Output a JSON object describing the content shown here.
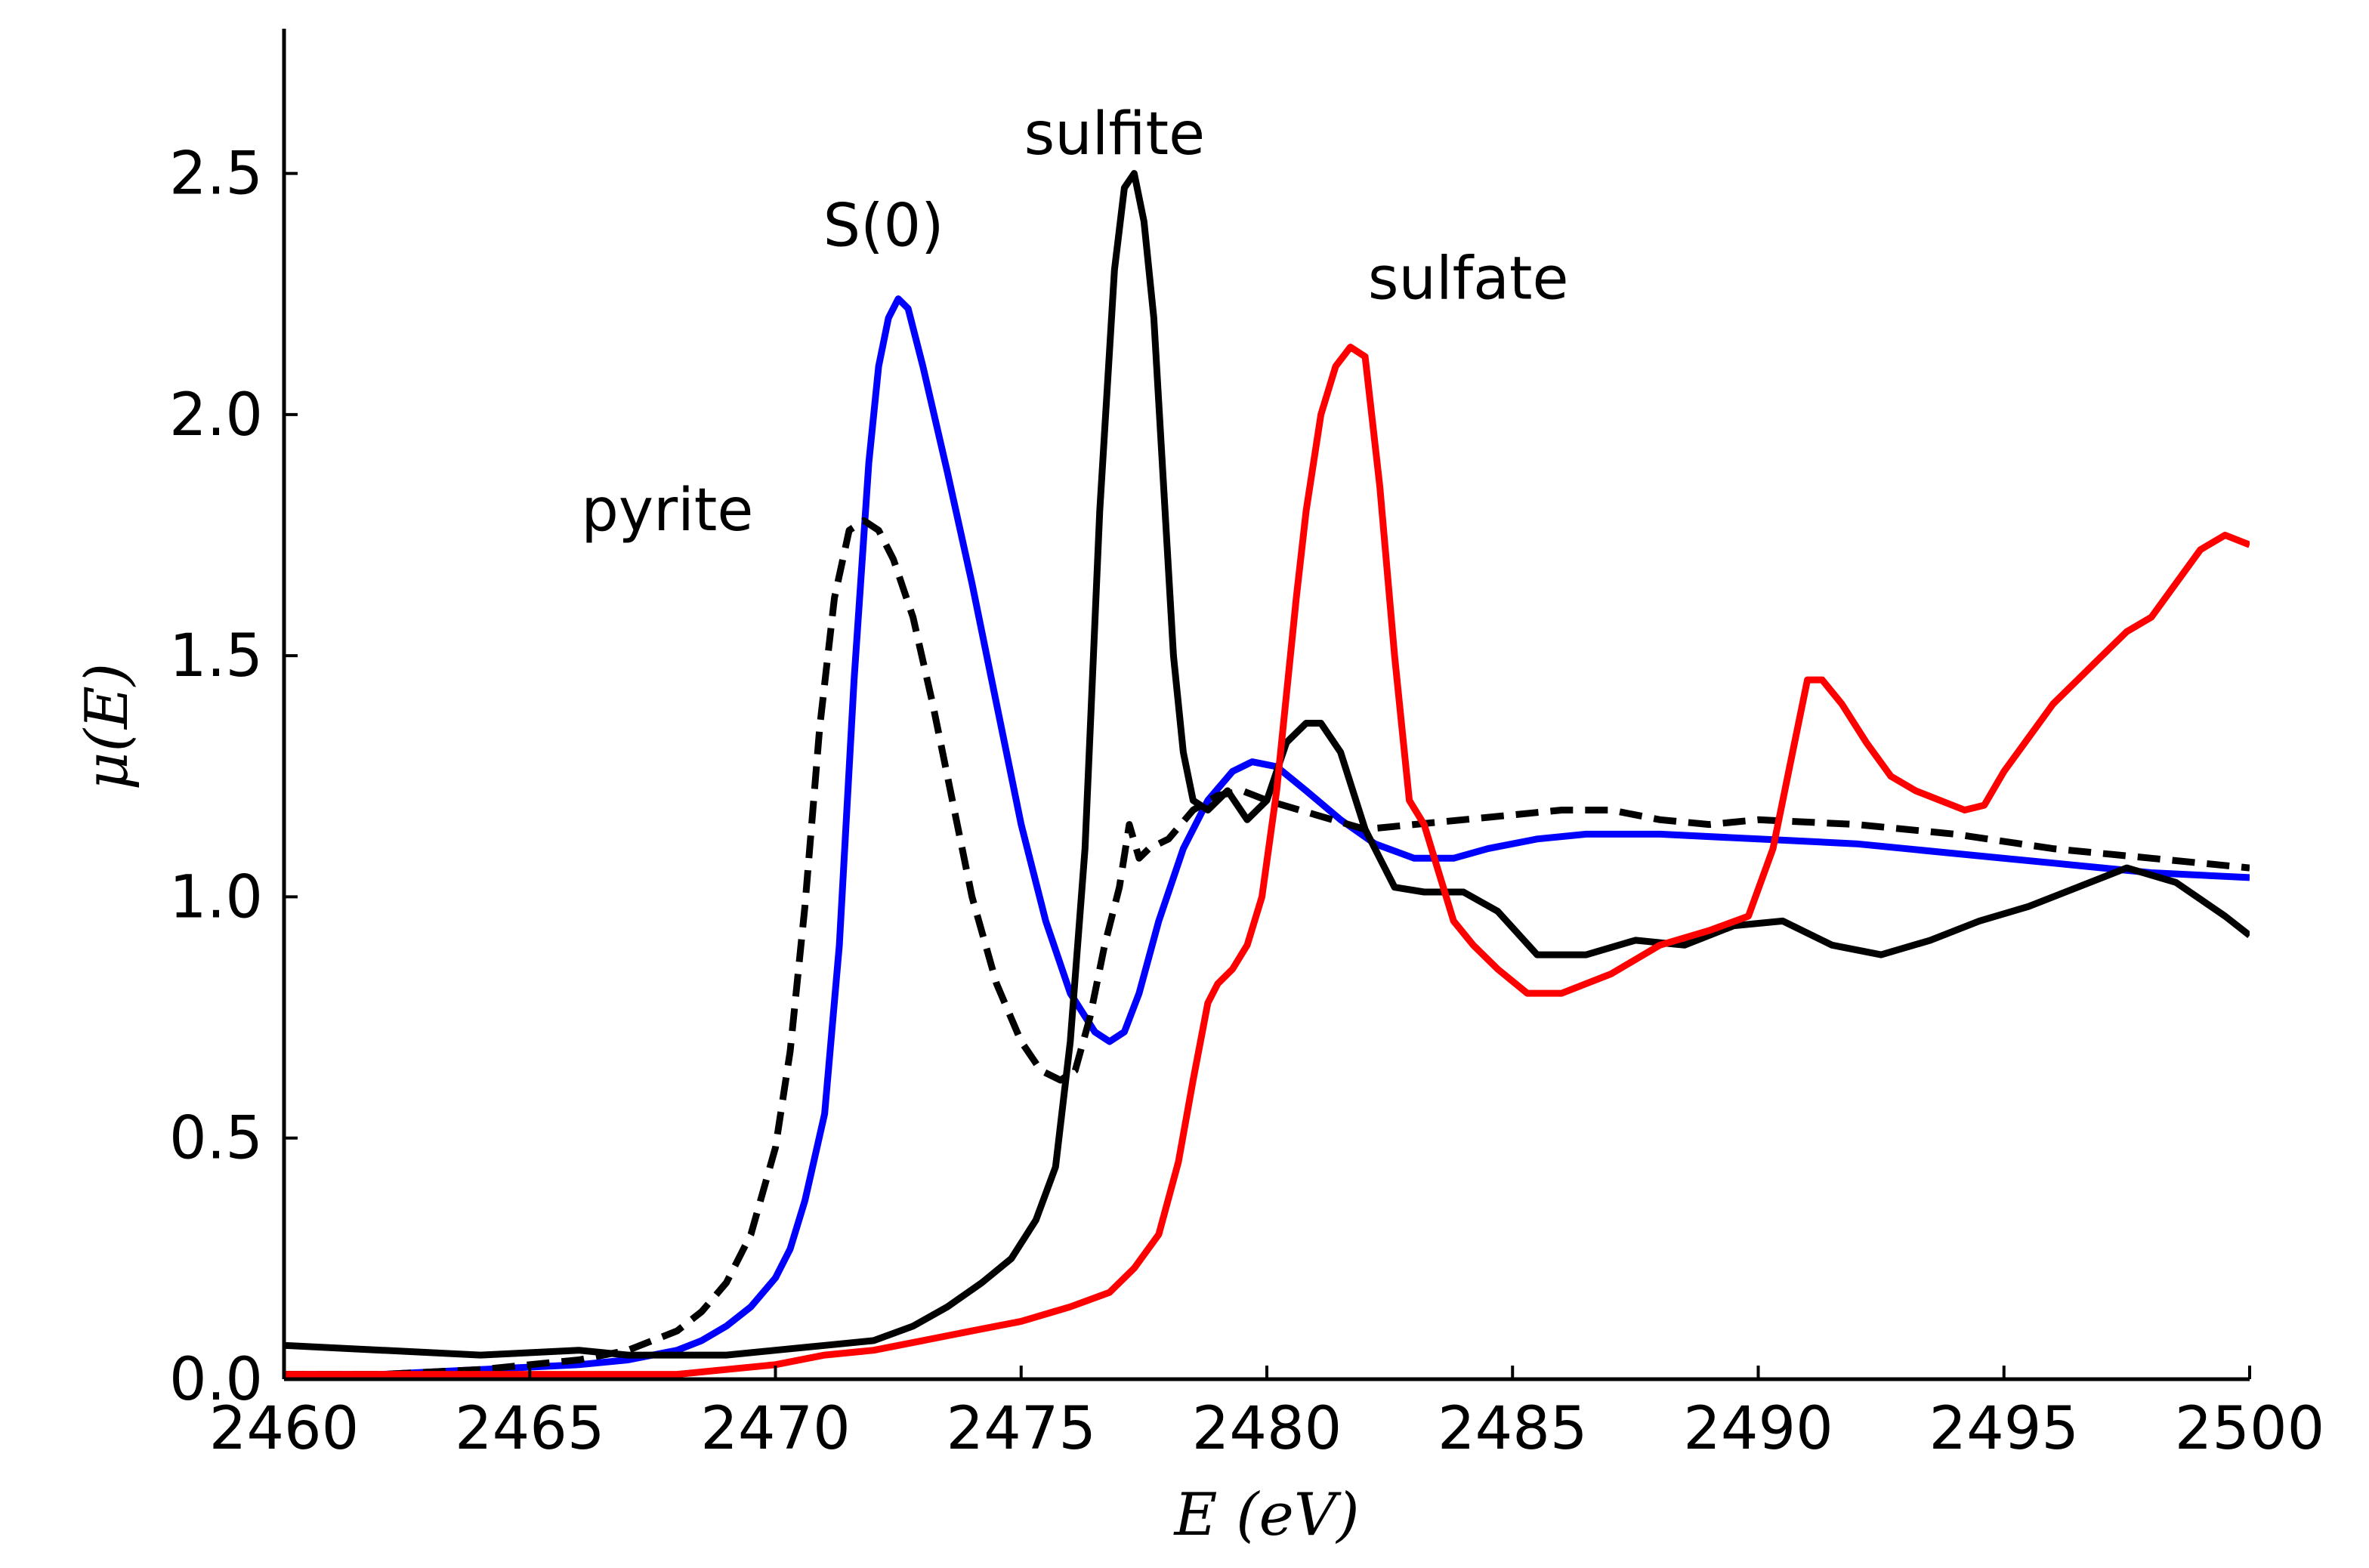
{
  "chart_data": {
    "type": "line",
    "title": "",
    "xlabel": "E (eV)",
    "ylabel": "μ(E)",
    "xlim": [
      2460,
      2500
    ],
    "ylim": [
      0,
      2.8
    ],
    "x_ticks": [
      2460,
      2465,
      2470,
      2475,
      2480,
      2485,
      2490,
      2495,
      2500
    ],
    "x_tick_labels": [
      "2460",
      "2465",
      "2470",
      "2475",
      "2480",
      "2485",
      "2490",
      "2495",
      "2500"
    ],
    "y_ticks": [
      0,
      0.5,
      1.0,
      1.5,
      2.0,
      2.5
    ],
    "y_tick_labels": [
      "0.0",
      "0.5",
      "1.0",
      "1.5",
      "2.0",
      "2.5"
    ],
    "grid": false,
    "legend": "none",
    "annotations": [
      {
        "text": "pyrite",
        "x": 2467.8,
        "y": 1.76
      },
      {
        "text": "S(0)",
        "x": 2472.2,
        "y": 2.35
      },
      {
        "text": "sulfite",
        "x": 2476.9,
        "y": 2.54
      },
      {
        "text": "sulfate",
        "x": 2484.1,
        "y": 2.24
      }
    ],
    "series": [
      {
        "color": "#0000ff",
        "style": "solid",
        "x": [
          2460,
          2462,
          2464,
          2466,
          2467,
          2468,
          2468.5,
          2469,
          2469.5,
          2470,
          2470.3,
          2470.6,
          2471,
          2471.3,
          2471.6,
          2471.9,
          2472.1,
          2472.3,
          2472.5,
          2472.7,
          2473,
          2473.5,
          2474,
          2474.5,
          2475,
          2475.5,
          2476,
          2476.5,
          2476.8,
          2477.1,
          2477.4,
          2477.8,
          2478.3,
          2478.8,
          2479.3,
          2479.7,
          2480.2,
          2480.8,
          2481.5,
          2482.2,
          2483,
          2483.8,
          2484.5,
          2485.5,
          2486.5,
          2488,
          2490,
          2492,
          2494,
          2496,
          2498,
          2500
        ],
        "y": [
          0.01,
          0.01,
          0.02,
          0.03,
          0.04,
          0.06,
          0.08,
          0.11,
          0.15,
          0.21,
          0.27,
          0.37,
          0.55,
          0.9,
          1.45,
          1.9,
          2.1,
          2.2,
          2.24,
          2.22,
          2.1,
          1.88,
          1.65,
          1.4,
          1.15,
          0.95,
          0.8,
          0.72,
          0.7,
          0.72,
          0.8,
          0.95,
          1.1,
          1.2,
          1.26,
          1.28,
          1.27,
          1.22,
          1.16,
          1.11,
          1.08,
          1.08,
          1.1,
          1.12,
          1.13,
          1.13,
          1.12,
          1.11,
          1.09,
          1.07,
          1.05,
          1.04
        ]
      },
      {
        "color": "#000000",
        "style": "dashed",
        "x": [
          2460,
          2462,
          2464,
          2465,
          2466,
          2467,
          2468,
          2468.5,
          2469,
          2469.5,
          2470,
          2470.3,
          2470.6,
          2470.9,
          2471.2,
          2471.5,
          2471.8,
          2472.1,
          2472.4,
          2472.8,
          2473.2,
          2473.6,
          2474,
          2474.5,
          2475,
          2475.4,
          2475.8,
          2476.1,
          2476.4,
          2476.7,
          2477,
          2477.2,
          2477.4,
          2477.6,
          2478,
          2478.5,
          2479,
          2479.5,
          2480,
          2481,
          2482,
          2483,
          2484,
          2485,
          2486,
          2487,
          2488,
          2489,
          2490,
          2492,
          2494,
          2496,
          2498,
          2500
        ],
        "y": [
          0.01,
          0.01,
          0.02,
          0.03,
          0.04,
          0.06,
          0.1,
          0.14,
          0.2,
          0.3,
          0.48,
          0.68,
          0.98,
          1.35,
          1.62,
          1.76,
          1.78,
          1.76,
          1.7,
          1.58,
          1.4,
          1.2,
          1.0,
          0.82,
          0.7,
          0.64,
          0.62,
          0.64,
          0.75,
          0.9,
          1.02,
          1.15,
          1.08,
          1.1,
          1.12,
          1.18,
          1.21,
          1.22,
          1.2,
          1.17,
          1.14,
          1.15,
          1.16,
          1.17,
          1.18,
          1.18,
          1.16,
          1.15,
          1.16,
          1.15,
          1.13,
          1.1,
          1.08,
          1.06
        ]
      },
      {
        "color": "#000000",
        "style": "solid",
        "x": [
          2460,
          2462,
          2464,
          2466,
          2467,
          2468,
          2469,
          2470,
          2471,
          2472,
          2472.8,
          2473.5,
          2474.2,
          2474.8,
          2475.3,
          2475.7,
          2476,
          2476.3,
          2476.6,
          2476.9,
          2477.1,
          2477.3,
          2477.5,
          2477.7,
          2477.9,
          2478.1,
          2478.3,
          2478.5,
          2478.8,
          2479.2,
          2479.6,
          2480,
          2480.4,
          2480.8,
          2481.1,
          2481.5,
          2482,
          2482.6,
          2483.2,
          2484,
          2484.7,
          2485.5,
          2486.5,
          2487.5,
          2488.5,
          2489.5,
          2490.5,
          2491.5,
          2492.5,
          2493.5,
          2494.5,
          2495.5,
          2496.5,
          2497.5,
          2498.5,
          2499.5,
          2500
        ],
        "y": [
          0.07,
          0.06,
          0.05,
          0.06,
          0.05,
          0.05,
          0.05,
          0.06,
          0.07,
          0.08,
          0.11,
          0.15,
          0.2,
          0.25,
          0.33,
          0.44,
          0.7,
          1.1,
          1.8,
          2.3,
          2.47,
          2.5,
          2.4,
          2.2,
          1.85,
          1.5,
          1.3,
          1.2,
          1.18,
          1.22,
          1.16,
          1.2,
          1.32,
          1.36,
          1.36,
          1.3,
          1.14,
          1.02,
          1.01,
          1.01,
          0.97,
          0.88,
          0.88,
          0.91,
          0.9,
          0.94,
          0.95,
          0.9,
          0.88,
          0.91,
          0.95,
          0.98,
          1.02,
          1.06,
          1.03,
          0.96,
          0.92
        ]
      },
      {
        "color": "#ff0000",
        "style": "solid",
        "x": [
          2460,
          2463,
          2466,
          2468,
          2469,
          2470,
          2471,
          2472,
          2473,
          2474,
          2475,
          2476,
          2476.8,
          2477.3,
          2477.8,
          2478.2,
          2478.5,
          2478.8,
          2479,
          2479.3,
          2479.6,
          2479.9,
          2480.2,
          2480.4,
          2480.6,
          2480.8,
          2481.1,
          2481.4,
          2481.7,
          2482,
          2482.3,
          2482.6,
          2482.9,
          2483.2,
          2483.5,
          2483.8,
          2484.2,
          2484.7,
          2485.3,
          2486,
          2487,
          2488,
          2489,
          2489.8,
          2490.3,
          2490.7,
          2491,
          2491.3,
          2491.7,
          2492.2,
          2492.7,
          2493.2,
          2493.7,
          2494.2,
          2494.6,
          2495,
          2495.5,
          2496,
          2496.5,
          2497,
          2497.5,
          2498,
          2498.5,
          2499,
          2499.5,
          2500
        ],
        "y": [
          0.01,
          0.01,
          0.01,
          0.01,
          0.02,
          0.03,
          0.05,
          0.06,
          0.08,
          0.1,
          0.12,
          0.15,
          0.18,
          0.23,
          0.3,
          0.45,
          0.62,
          0.78,
          0.82,
          0.85,
          0.9,
          1.0,
          1.22,
          1.42,
          1.62,
          1.8,
          2.0,
          2.1,
          2.14,
          2.12,
          1.85,
          1.5,
          1.2,
          1.15,
          1.05,
          0.95,
          0.9,
          0.85,
          0.8,
          0.8,
          0.84,
          0.9,
          0.93,
          0.96,
          1.1,
          1.3,
          1.45,
          1.45,
          1.4,
          1.32,
          1.25,
          1.22,
          1.2,
          1.18,
          1.19,
          1.26,
          1.33,
          1.4,
          1.45,
          1.5,
          1.55,
          1.58,
          1.65,
          1.72,
          1.75,
          1.73
        ]
      }
    ]
  }
}
